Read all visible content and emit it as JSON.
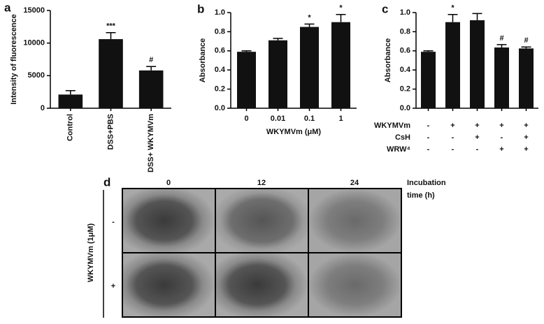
{
  "chart_data": [
    {
      "type": "bar",
      "panel": "a",
      "ylabel": "Intensity of fluorescence",
      "categories": [
        "Control",
        "DSS+PBS",
        "DSS+ WKYMVm"
      ],
      "values": [
        2100,
        10600,
        5800
      ],
      "errors": [
        600,
        1000,
        600
      ],
      "annotations": [
        null,
        "***",
        "#"
      ],
      "color": "#111111",
      "ylim": [
        0,
        15000
      ],
      "yticks": [
        0,
        5000,
        10000,
        15000
      ]
    },
    {
      "type": "bar",
      "panel": "b",
      "ylabel": "Absorbance",
      "xlabel": "WKYMVm (μM)",
      "categories": [
        "0",
        "0.01",
        "0.1",
        "1"
      ],
      "values": [
        0.59,
        0.71,
        0.85,
        0.9
      ],
      "errors": [
        0.01,
        0.02,
        0.03,
        0.08
      ],
      "annotations": [
        null,
        null,
        "*",
        "*"
      ],
      "color": "#111111",
      "ylim": [
        0,
        1
      ],
      "yticks": [
        {
          "value": 0,
          "label": "0.0"
        },
        0.2,
        0.4,
        0.6,
        0.8,
        {
          "value": 1,
          "label": "1.0"
        }
      ]
    },
    {
      "type": "bar",
      "panel": "c",
      "ylabel": "Absorbance",
      "values": [
        0.59,
        0.9,
        0.92,
        0.635,
        0.625
      ],
      "errors": [
        0.01,
        0.08,
        0.07,
        0.03,
        0.015
      ],
      "annotations": [
        null,
        "*",
        null,
        "#",
        "#"
      ],
      "color": "#111111",
      "ylim": [
        0,
        1
      ],
      "yticks": [
        {
          "value": 0,
          "label": "0.0"
        },
        0.2,
        0.4,
        0.6,
        0.8,
        {
          "value": 1,
          "label": "1.0"
        }
      ],
      "treatments": [
        {
          "name": "WKYMVm",
          "signs": [
            "-",
            "+",
            "+",
            "+",
            "+"
          ]
        },
        {
          "name": "CsH",
          "signs": [
            "-",
            "-",
            "+",
            "-",
            "+"
          ]
        },
        {
          "name": "WRW⁴",
          "signs": [
            "-",
            "-",
            "-",
            "+",
            "+"
          ]
        }
      ]
    }
  ],
  "panel_d": {
    "panel": "d",
    "column_labels": [
      "0",
      "12",
      "24"
    ],
    "time_label": [
      "Incubation",
      "time (h)"
    ],
    "row_label": "WKYMVm (1μM)",
    "row_signs": [
      "-",
      "+"
    ]
  }
}
